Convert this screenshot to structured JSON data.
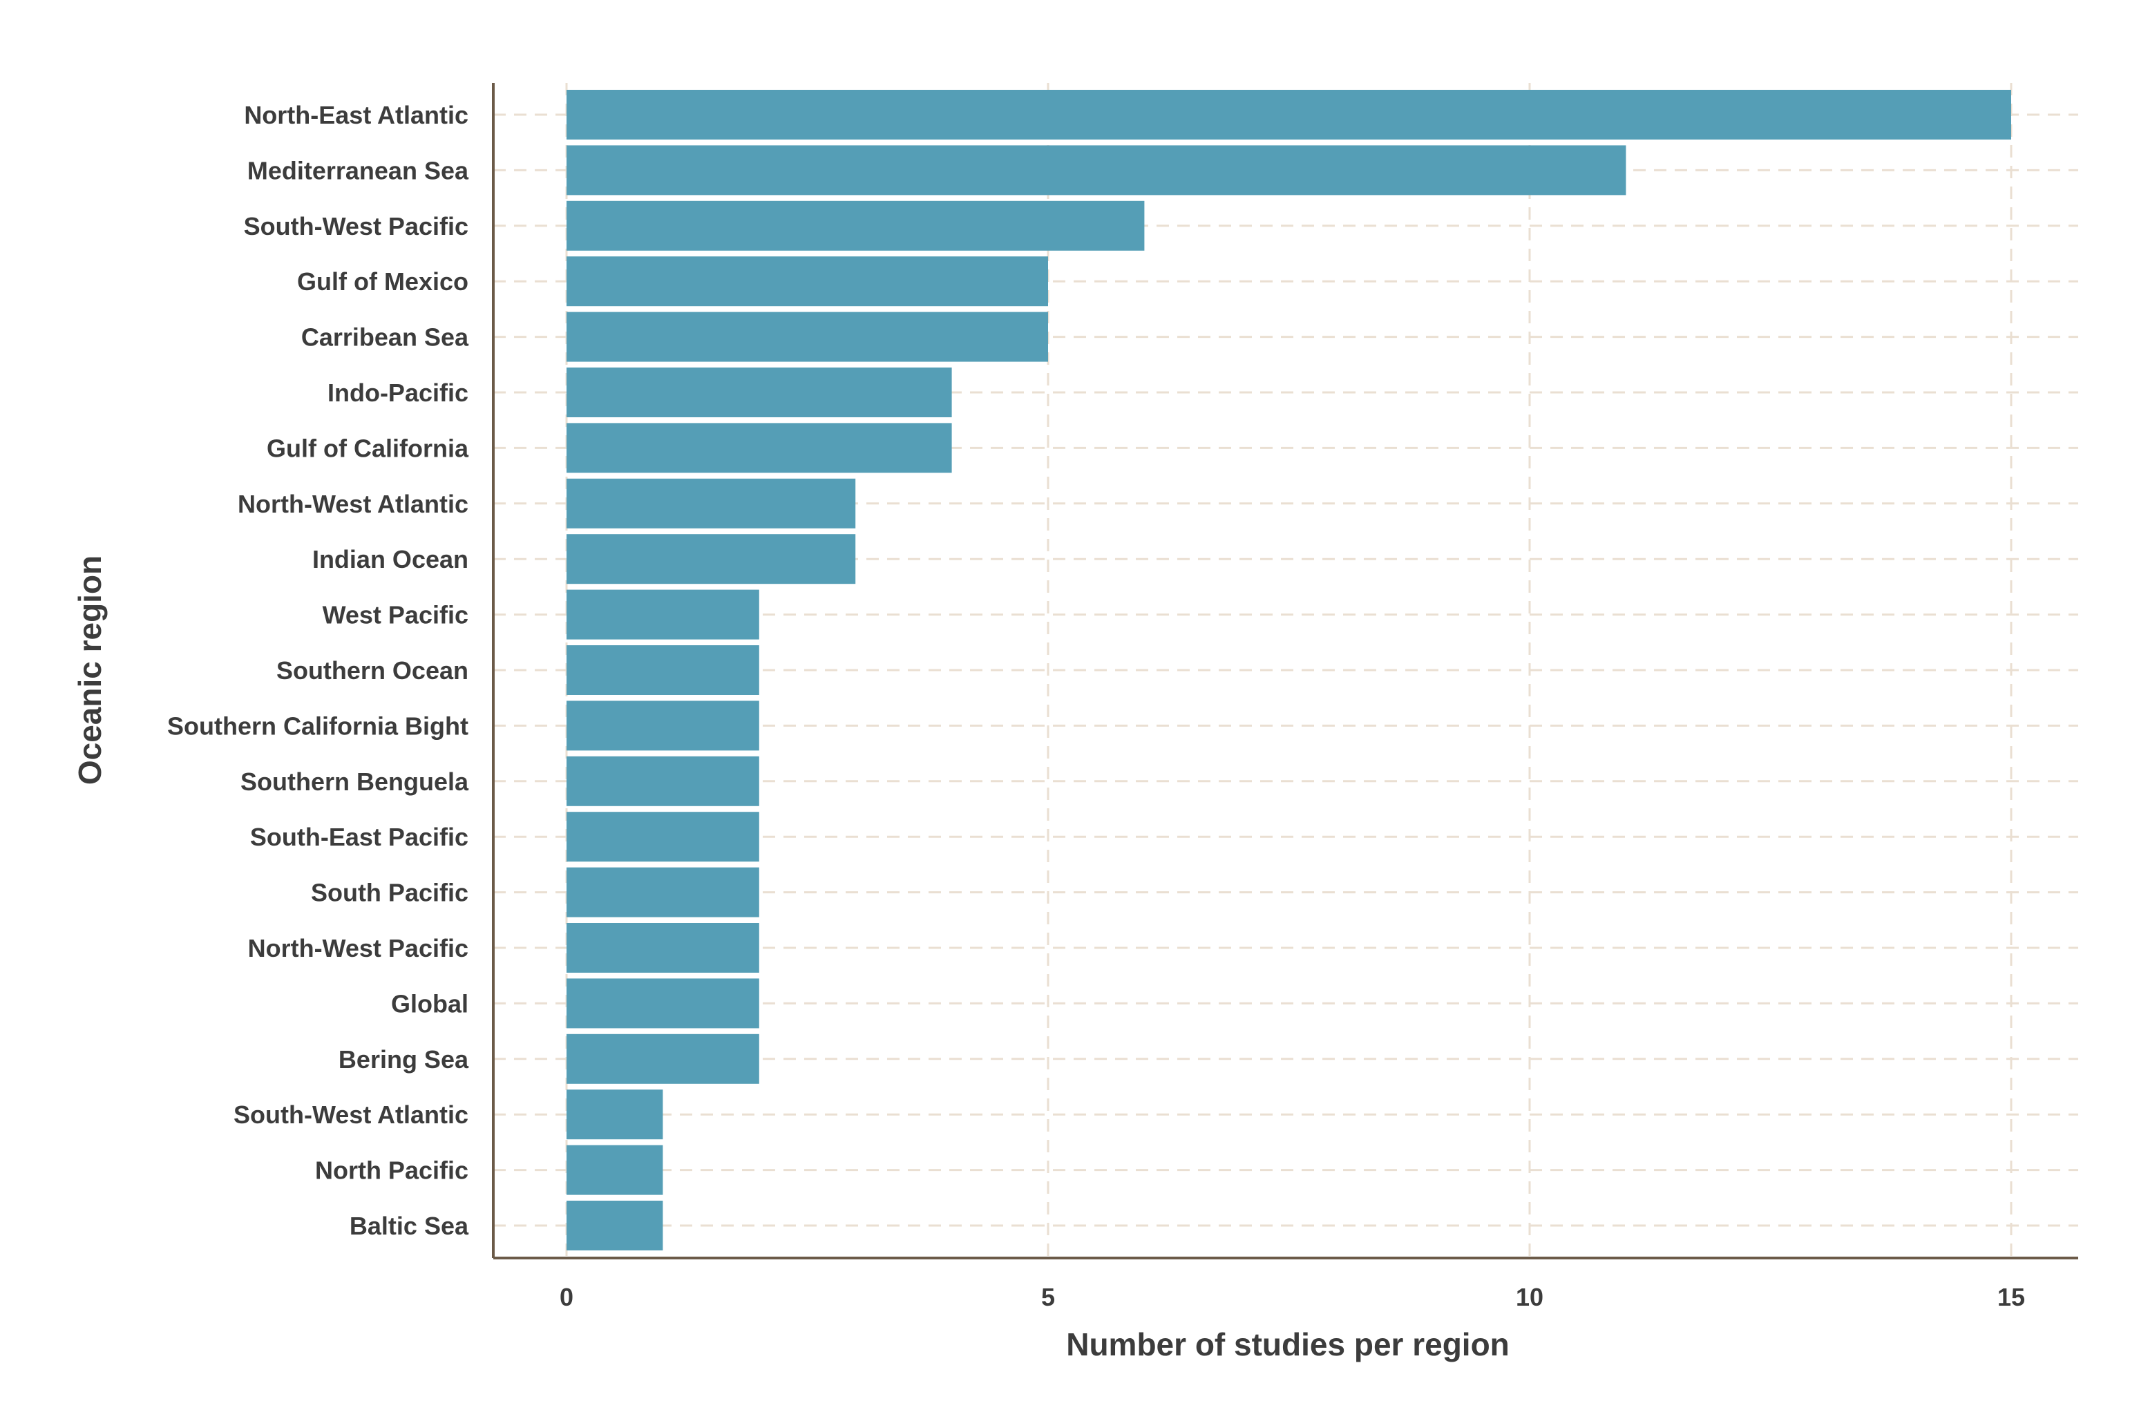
{
  "chart_data": {
    "type": "bar",
    "orientation": "horizontal",
    "categories": [
      "North-East Atlantic",
      "Mediterranean Sea",
      "South-West Pacific",
      "Gulf of Mexico",
      "Carribean Sea",
      "Indo-Pacific",
      "Gulf of California",
      "North-West Atlantic",
      "Indian Ocean",
      "West Pacific",
      "Southern Ocean",
      "Southern California Bight",
      "Southern Benguela",
      "South-East Pacific",
      "South Pacific",
      "North-West Pacific",
      "Global",
      "Bering Sea",
      "South-West Atlantic",
      "North Pacific",
      "Baltic Sea"
    ],
    "values": [
      15,
      11,
      6,
      5,
      5,
      4,
      4,
      3,
      3,
      2,
      2,
      2,
      2,
      2,
      2,
      2,
      2,
      2,
      1,
      1,
      1
    ],
    "xlabel": "Number of studies per region",
    "ylabel": "Oceanic region",
    "xlim": [
      -0.75,
      15.75
    ],
    "xticks": [
      0,
      5,
      10,
      15
    ],
    "xtick_labels": [
      "0",
      "5",
      "10",
      "15"
    ],
    "grid": "dashed, both axes",
    "legend": "none",
    "colors": {
      "bar": "#559eb6",
      "grid": "#eadfd2",
      "axis": "#6b5a48",
      "text": "#3c3c3c"
    }
  }
}
